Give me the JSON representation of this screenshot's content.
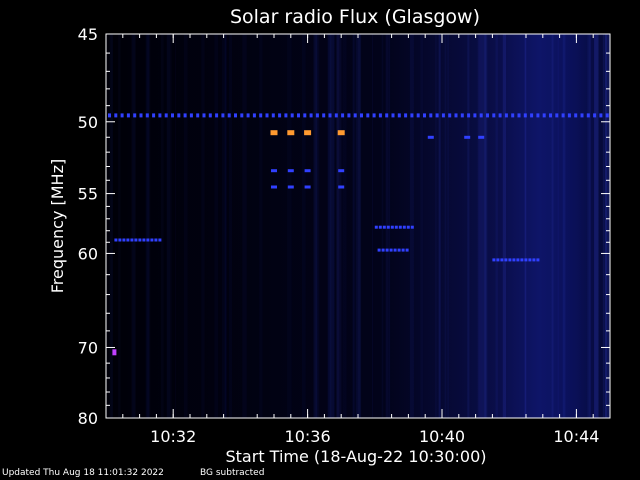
{
  "chart_data": {
    "type": "heatmap",
    "title": "Solar radio Flux (Glasgow)",
    "xlabel": "Start Time (18-Aug-22 10:30:00)",
    "ylabel": "Frequency [MHz]",
    "x_range": [
      "10:30:00",
      "10:45:00"
    ],
    "x_ticks": [
      "10:32",
      "10:36",
      "10:40",
      "10:44"
    ],
    "y_range": [
      45,
      80
    ],
    "y_ticks": [
      45,
      50,
      55,
      60,
      70,
      80
    ],
    "y_scale": "reciprocal",
    "grid": false,
    "colors": {
      "background": "#000008",
      "noise": "#0c1060",
      "rfi": "#3040ff",
      "intense": "#ff9a30",
      "spot": "#c040ff"
    },
    "features": [
      {
        "kind": "dashed-rfi",
        "freq_mhz": 49.6,
        "t_start": "10:30:00",
        "t_end": "10:45:00",
        "intensity": "high"
      },
      {
        "kind": "intense-spot",
        "freq_mhz": 50.7,
        "times": [
          "10:35:00",
          "10:35:30",
          "10:36:00",
          "10:37:00"
        ]
      },
      {
        "kind": "spot",
        "freq_mhz": 53.3,
        "times": [
          "10:35:00",
          "10:35:30",
          "10:36:00",
          "10:37:00"
        ]
      },
      {
        "kind": "spot",
        "freq_mhz": 54.5,
        "times": [
          "10:35:00",
          "10:35:30",
          "10:36:00",
          "10:37:00"
        ]
      },
      {
        "kind": "rfi",
        "freq_mhz": 51.0,
        "times": [
          "10:39:40",
          "10:40:45",
          "10:41:10"
        ]
      },
      {
        "kind": "rfi",
        "freq_mhz": 58.8,
        "t_start": "10:30:15",
        "t_end": "10:31:35"
      },
      {
        "kind": "rfi",
        "freq_mhz": 57.7,
        "t_start": "10:38:00",
        "t_end": "10:39:05"
      },
      {
        "kind": "rfi",
        "freq_mhz": 59.7,
        "t_start": "10:38:05",
        "t_end": "10:38:55"
      },
      {
        "kind": "rfi",
        "freq_mhz": 60.6,
        "t_start": "10:41:30",
        "t_end": "10:42:50"
      },
      {
        "kind": "spot-purple",
        "freq_mhz": 70.6,
        "times": [
          "10:30:15"
        ]
      }
    ],
    "annotations": {
      "footer_left": "Updated Thu Aug 18 11:01:32 2022",
      "footer_right": "BG subtracted"
    }
  }
}
